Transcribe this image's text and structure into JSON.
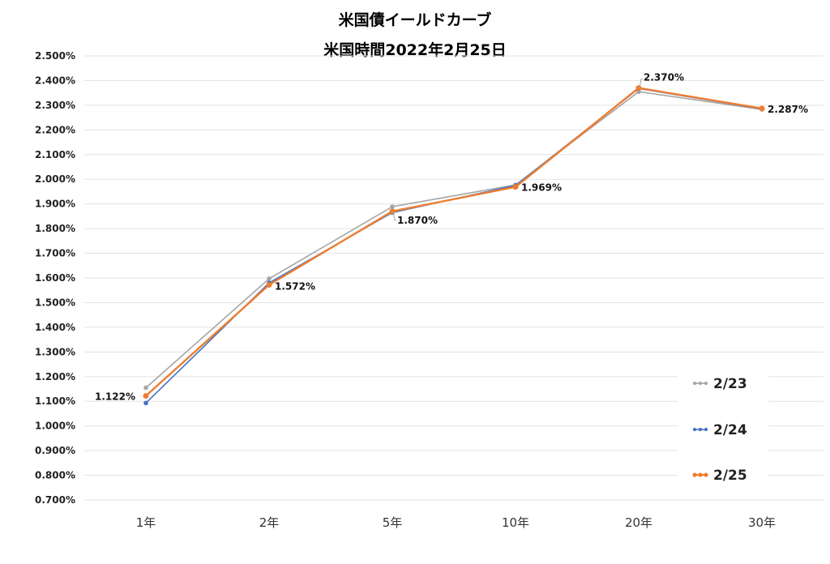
{
  "chart_data": {
    "type": "line",
    "title": "米国債イールドカーブ",
    "subtitle": "米国時間2022年2月25日",
    "categories": [
      "1年",
      "2年",
      "5年",
      "10年",
      "20年",
      "30年"
    ],
    "ylim": [
      0.7,
      2.5
    ],
    "ytick_step": 0.1,
    "ytick_labels": [
      "0.700%",
      "0.800%",
      "0.900%",
      "1.000%",
      "1.100%",
      "1.200%",
      "1.300%",
      "1.400%",
      "1.500%",
      "1.600%",
      "1.700%",
      "1.800%",
      "1.900%",
      "2.000%",
      "2.100%",
      "2.200%",
      "2.300%",
      "2.400%",
      "2.500%"
    ],
    "grid": true,
    "legend_position": "bottom-right",
    "series": [
      {
        "name": "2/23",
        "color": "#a5a5a5",
        "values": [
          1.155,
          1.597,
          1.889,
          1.977,
          2.355,
          2.283
        ]
      },
      {
        "name": "2/24",
        "color": "#4472c4",
        "values": [
          1.093,
          1.58,
          1.865,
          1.975,
          2.368,
          2.285
        ]
      },
      {
        "name": "2/25",
        "color": "#ed7d31",
        "values": [
          1.122,
          1.572,
          1.87,
          1.969,
          2.37,
          2.287
        ],
        "data_labels": [
          "1.122%",
          "1.572%",
          "1.870%",
          "1.969%",
          "2.370%",
          "2.287%"
        ]
      }
    ]
  }
}
